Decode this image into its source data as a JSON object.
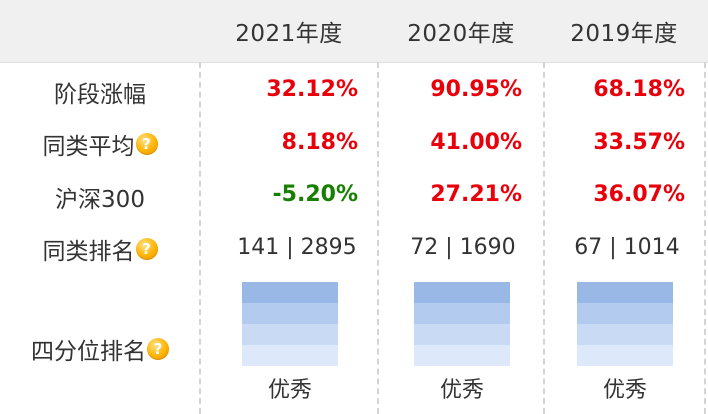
{
  "header": {
    "years": [
      "2021年度",
      "2020年度",
      "2019年度"
    ]
  },
  "rows": {
    "stage_return": {
      "label": "阶段涨幅",
      "values": [
        "32.12%",
        "90.95%",
        "68.18%"
      ]
    },
    "category_avg": {
      "label": "同类平均",
      "help_icon": "question-mark-icon",
      "values": [
        "8.18%",
        "41.00%",
        "33.57%"
      ]
    },
    "hs300": {
      "label": "沪深300",
      "values": [
        "-5.20%",
        "27.21%",
        "36.07%"
      ]
    },
    "category_rank": {
      "label": "同类排名",
      "help_icon": "question-mark-icon",
      "values": [
        "141 | 2895",
        "72 | 1690",
        "67 | 1014"
      ]
    },
    "quartile_rank": {
      "label": "四分位排名",
      "help_icon": "question-mark-icon",
      "levels": [
        4,
        4,
        4
      ],
      "values": [
        "优秀",
        "优秀",
        "优秀"
      ]
    }
  },
  "help_glyph": "?",
  "colors": {
    "positive": "#e8000b",
    "negative": "#178000",
    "quartile_shades": [
      "#9ab8e6",
      "#b3cbef",
      "#c9daf5",
      "#dde8fa"
    ],
    "header_bg": "#f0f0f0"
  }
}
